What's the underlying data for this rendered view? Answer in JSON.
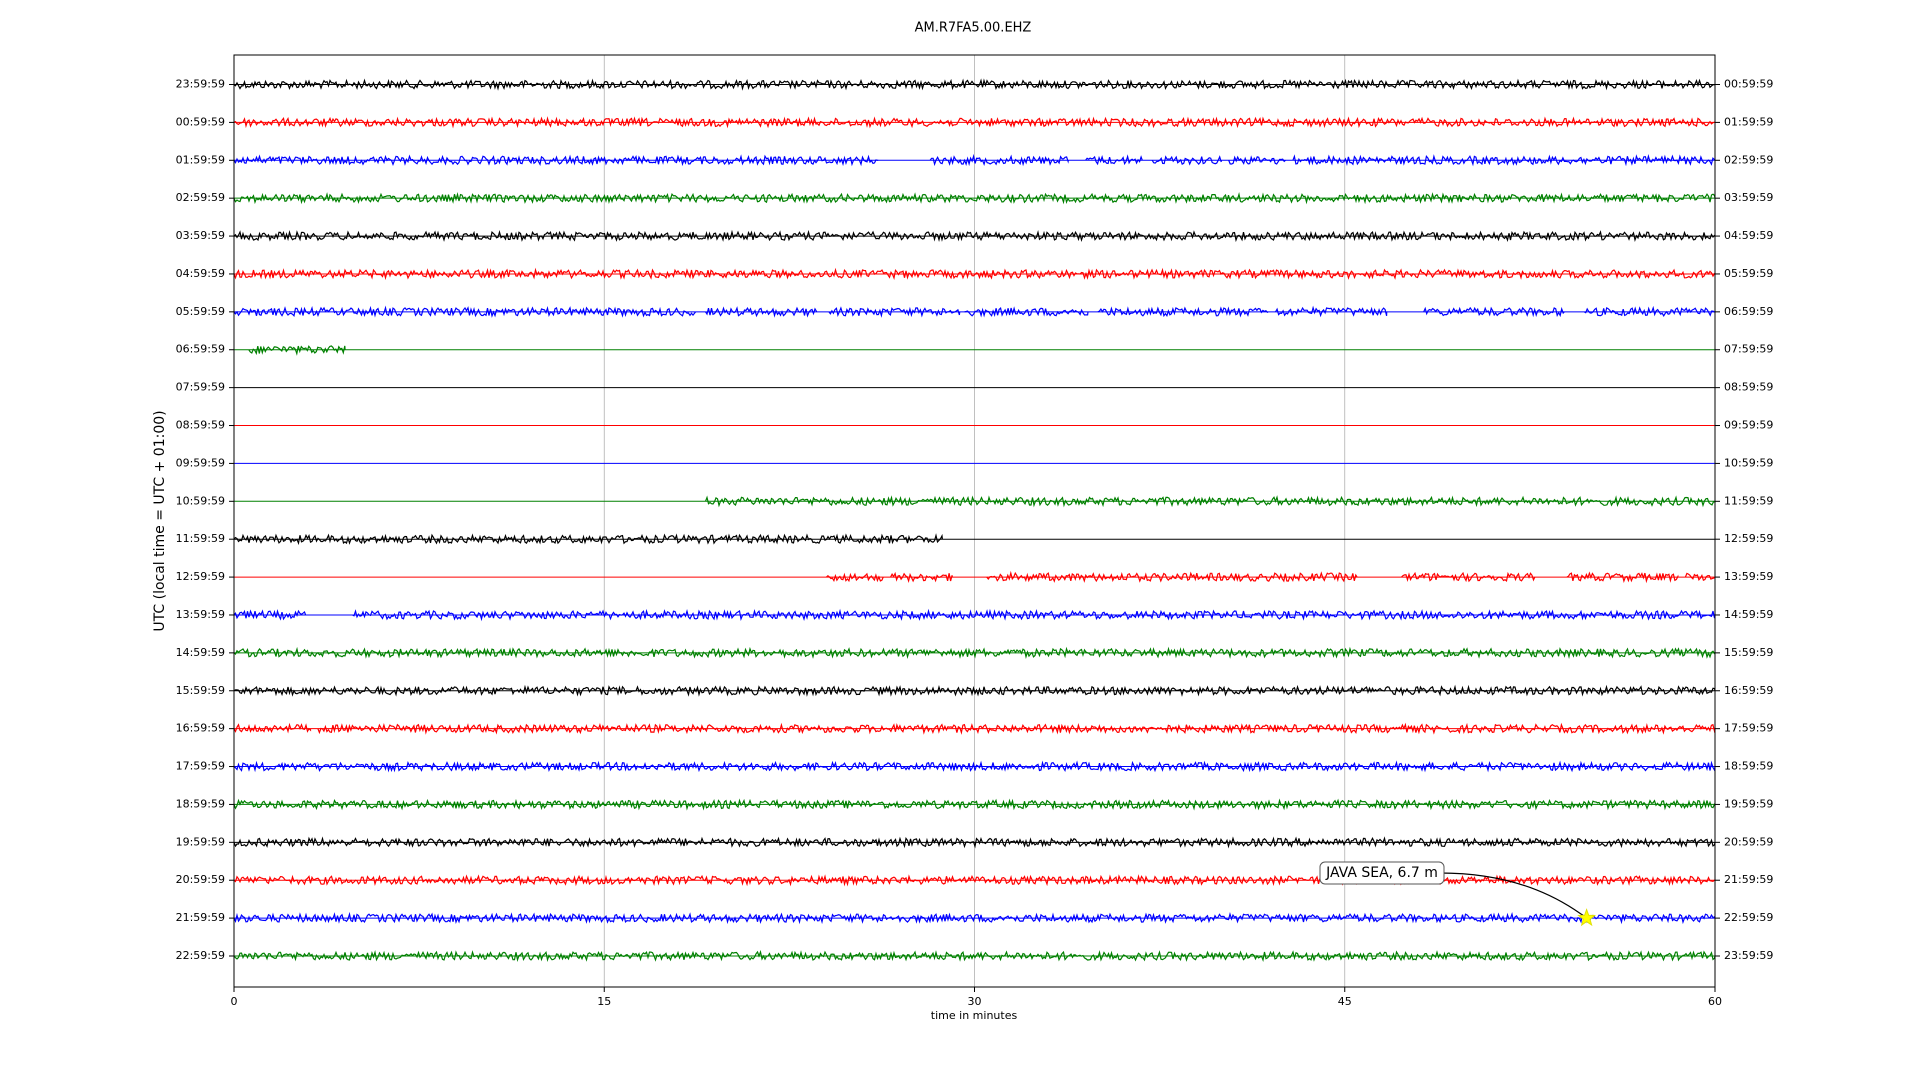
{
  "chart_data": {
    "type": "seismogram",
    "title": "AM.R7FA5.00.EHZ",
    "ylabel": "UTC (local time = UTC + 01:00)",
    "xlabel": "time in minutes",
    "xlim": [
      0,
      60
    ],
    "xticks": [
      0,
      15,
      30,
      45,
      60
    ],
    "grid": true,
    "traces": [
      {
        "label": "23:59:59",
        "right_label": "00:59:59",
        "color": "#000000",
        "segments": [
          [
            0,
            60
          ]
        ]
      },
      {
        "label": "00:59:59",
        "right_label": "01:59:59",
        "color": "#ff0000",
        "segments": [
          [
            0,
            60
          ]
        ]
      },
      {
        "label": "01:59:59",
        "right_label": "02:59:59",
        "color": "#0000ff",
        "segments": [
          [
            0,
            26.1
          ],
          [
            28.2,
            33.8
          ],
          [
            34.5,
            36.8
          ],
          [
            37.2,
            40
          ],
          [
            40.3,
            42.6
          ],
          [
            42.9,
            60
          ]
        ]
      },
      {
        "label": "02:59:59",
        "right_label": "03:59:59",
        "color": "#008000",
        "segments": [
          [
            0,
            60
          ]
        ]
      },
      {
        "label": "03:59:59",
        "right_label": "04:59:59",
        "color": "#000000",
        "segments": [
          [
            0,
            60
          ]
        ]
      },
      {
        "label": "04:59:59",
        "right_label": "05:59:59",
        "color": "#ff0000",
        "segments": [
          [
            0,
            60
          ]
        ]
      },
      {
        "label": "05:59:59",
        "right_label": "06:59:59",
        "color": "#0000ff",
        "segments": [
          [
            0,
            18.7
          ],
          [
            19.1,
            23.6
          ],
          [
            24.1,
            29.4
          ],
          [
            29.6,
            34.6
          ],
          [
            35,
            41.9
          ],
          [
            42.2,
            46.7
          ],
          [
            48.2,
            53.9
          ],
          [
            54.7,
            60
          ]
        ]
      },
      {
        "label": "06:59:59",
        "right_label": "07:59:59",
        "color": "#008000",
        "segments": [
          [
            0.6,
            4.5
          ]
        ]
      },
      {
        "label": "07:59:59",
        "right_label": "08:59:59",
        "color": "#000000",
        "segments": []
      },
      {
        "label": "08:59:59",
        "right_label": "09:59:59",
        "color": "#ff0000",
        "segments": []
      },
      {
        "label": "09:59:59",
        "right_label": "10:59:59",
        "color": "#0000ff",
        "segments": []
      },
      {
        "label": "10:59:59",
        "right_label": "11:59:59",
        "color": "#008000",
        "segments": [
          [
            19.1,
            60
          ]
        ]
      },
      {
        "label": "11:59:59",
        "right_label": "12:59:59",
        "color": "#000000",
        "segments": [
          [
            0,
            28.7
          ]
        ]
      },
      {
        "label": "12:59:59",
        "right_label": "13:59:59",
        "color": "#ff0000",
        "segments": [
          [
            24,
            26.3
          ],
          [
            26.6,
            29.1
          ],
          [
            30.5,
            45.5
          ],
          [
            47.3,
            52.7
          ],
          [
            54,
            58.5
          ],
          [
            58.8,
            60
          ]
        ]
      },
      {
        "label": "13:59:59",
        "right_label": "14:59:59",
        "color": "#0000ff",
        "segments": [
          [
            0,
            2.9
          ],
          [
            4.8,
            60
          ]
        ]
      },
      {
        "label": "14:59:59",
        "right_label": "15:59:59",
        "color": "#008000",
        "segments": [
          [
            0,
            60
          ]
        ]
      },
      {
        "label": "15:59:59",
        "right_label": "16:59:59",
        "color": "#000000",
        "segments": [
          [
            0,
            60
          ]
        ]
      },
      {
        "label": "16:59:59",
        "right_label": "17:59:59",
        "color": "#ff0000",
        "segments": [
          [
            0,
            3.1
          ],
          [
            3.4,
            60
          ]
        ]
      },
      {
        "label": "17:59:59",
        "right_label": "18:59:59",
        "color": "#0000ff",
        "segments": [
          [
            0,
            60
          ]
        ]
      },
      {
        "label": "18:59:59",
        "right_label": "19:59:59",
        "color": "#008000",
        "segments": [
          [
            0,
            60
          ]
        ]
      },
      {
        "label": "19:59:59",
        "right_label": "20:59:59",
        "color": "#000000",
        "segments": [
          [
            0,
            60
          ]
        ]
      },
      {
        "label": "20:59:59",
        "right_label": "21:59:59",
        "color": "#ff0000",
        "segments": [
          [
            0,
            60
          ]
        ]
      },
      {
        "label": "21:59:59",
        "right_label": "22:59:59",
        "color": "#0000ff",
        "segments": [
          [
            0,
            60
          ]
        ],
        "event": {
          "text": "JAVA SEA, 6.7 m",
          "x": 54.8
        }
      },
      {
        "label": "22:59:59",
        "right_label": "23:59:59",
        "color": "#008000",
        "segments": [
          [
            0,
            60
          ]
        ]
      }
    ]
  }
}
